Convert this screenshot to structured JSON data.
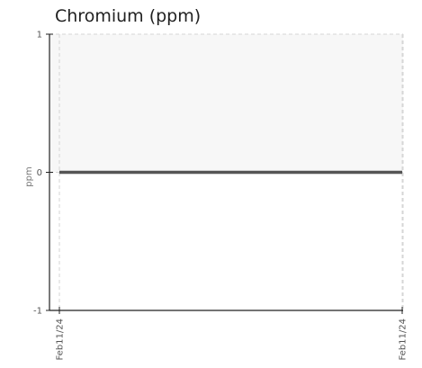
{
  "chart_data": {
    "type": "line",
    "title": "Chromium (ppm)",
    "ylabel": "ppm",
    "xlabel": "",
    "ylim": [
      -1,
      1
    ],
    "yticks": [
      1,
      0,
      -1
    ],
    "x": [
      "Feb11/24",
      "Feb11/24"
    ],
    "series": [
      {
        "values": [
          0,
          0
        ]
      }
    ],
    "band": {
      "from": 0,
      "to": 1,
      "color": "#f7f7f7"
    },
    "grid": true,
    "line_color": "#555555"
  }
}
